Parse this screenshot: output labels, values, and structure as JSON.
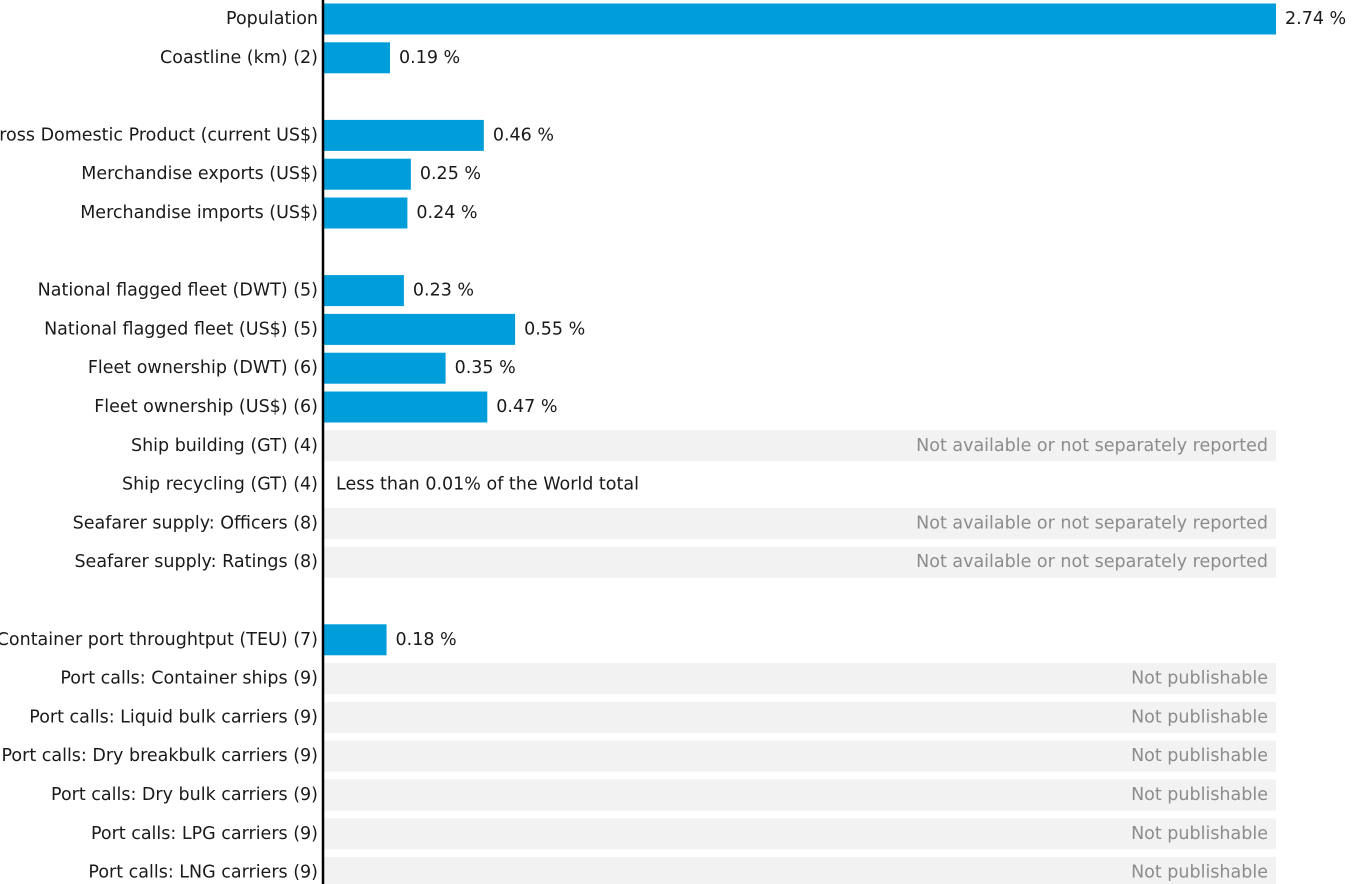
{
  "chart_data": {
    "type": "bar",
    "orientation": "horizontal",
    "unit": "%",
    "bar_color": "#009ddb",
    "na_background": "#f2f2f2",
    "na_text_color": "#8c8c8c",
    "xlim": [
      0,
      2.74
    ],
    "grid": false,
    "legend": "none",
    "rows": [
      {
        "label": "Population",
        "value": 2.74,
        "value_label": "2.74 %"
      },
      {
        "label": "Coastline (km) (2)",
        "value": 0.19,
        "value_label": "0.19 %"
      },
      {
        "gap": true
      },
      {
        "label": "Gross Domestic Product (current US$)",
        "value": 0.46,
        "value_label": "0.46 %"
      },
      {
        "label": "Merchandise exports (US$)",
        "value": 0.25,
        "value_label": "0.25 %"
      },
      {
        "label": "Merchandise imports (US$)",
        "value": 0.24,
        "value_label": "0.24 %"
      },
      {
        "gap": true
      },
      {
        "label": "National flagged fleet (DWT) (5)",
        "value": 0.23,
        "value_label": "0.23 %"
      },
      {
        "label": "National flagged fleet (US$) (5)",
        "value": 0.55,
        "value_label": "0.55 %"
      },
      {
        "label": "Fleet ownership (DWT) (6)",
        "value": 0.35,
        "value_label": "0.35 %"
      },
      {
        "label": "Fleet ownership (US$) (6)",
        "value": 0.47,
        "value_label": "0.47 %"
      },
      {
        "label": "Ship building (GT) (4)",
        "value": null,
        "status": "na",
        "note": "Not available or not separately reported"
      },
      {
        "label": "Ship recycling (GT) (4)",
        "value": null,
        "status": "note",
        "note": "Less than 0.01% of the World total"
      },
      {
        "label": "Seafarer supply: Officers (8)",
        "value": null,
        "status": "na",
        "note": "Not available or not separately reported"
      },
      {
        "label": "Seafarer supply: Ratings (8)",
        "value": null,
        "status": "na",
        "note": "Not available or not separately reported"
      },
      {
        "gap": true
      },
      {
        "label": "Container port throughtput (TEU) (7)",
        "value": 0.18,
        "value_label": "0.18 %"
      },
      {
        "label": "Port calls: Container ships (9)",
        "value": null,
        "status": "na",
        "note": "Not publishable"
      },
      {
        "label": "Port calls: Liquid bulk carriers (9)",
        "value": null,
        "status": "na",
        "note": "Not publishable"
      },
      {
        "label": "Port calls: Dry breakbulk carriers (9)",
        "value": null,
        "status": "na",
        "note": "Not publishable"
      },
      {
        "label": "Port calls: Dry bulk carriers (9)",
        "value": null,
        "status": "na",
        "note": "Not publishable"
      },
      {
        "label": "Port calls: LPG carriers (9)",
        "value": null,
        "status": "na",
        "note": "Not publishable"
      },
      {
        "label": "Port calls: LNG carriers (9)",
        "value": null,
        "status": "na",
        "note": "Not publishable"
      }
    ]
  }
}
